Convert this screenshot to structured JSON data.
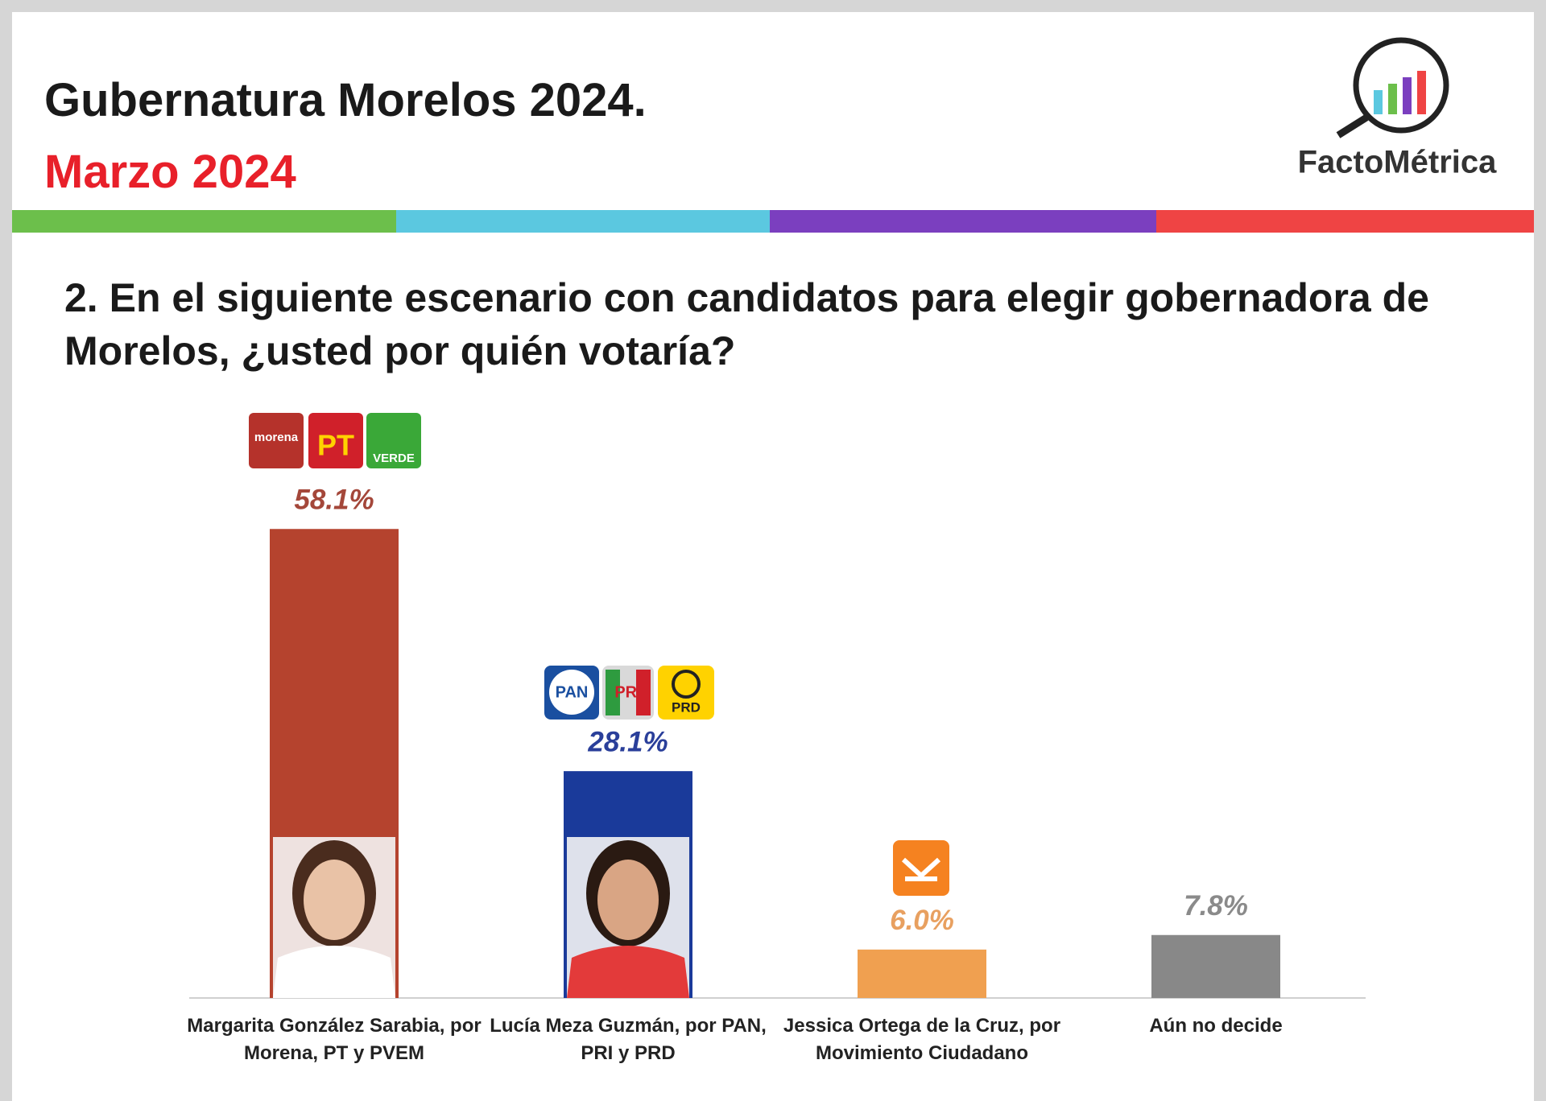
{
  "chart_data": {
    "type": "bar",
    "title": "Gubernatura Morelos 2024.",
    "subtitle": "Marzo 2024",
    "question": "2. En el siguiente escenario con candidatos para elegir gobernadora de Morelos, ¿usted por quién votaría?",
    "brand": "FactoMétrica",
    "categories": [
      "Margarita González Sarabia, por Morena, PT y PVEM",
      "Lucía Meza Guzmán, por PAN, PRI y PRD",
      "Jessica Ortega de la Cruz, por Movimiento Ciudadano",
      "Aún no decide"
    ],
    "values": [
      58.1,
      28.1,
      6.0,
      7.8
    ],
    "value_labels": [
      "58.1%",
      "28.1%",
      "6.0%",
      "7.8%"
    ],
    "colors": [
      "#b5432e",
      "#1a3a9a",
      "#f0a050",
      "#888888"
    ],
    "label_colors": [
      "#a4473a",
      "#2a3f9a",
      "#e8a060",
      "#8a8a8a"
    ],
    "party_logos": [
      "morena",
      "PT",
      "VERDE",
      "PAN",
      "PRI",
      "PRD"
    ]
  }
}
